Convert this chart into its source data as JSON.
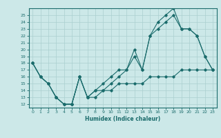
{
  "title": "",
  "xlabel": "Humidex (Indice chaleur)",
  "bg_color": "#cce8e8",
  "grid_color": "#aacfcf",
  "line_color": "#1a6b6b",
  "xticks": [
    0,
    1,
    2,
    3,
    4,
    5,
    6,
    7,
    8,
    9,
    10,
    11,
    12,
    13,
    14,
    15,
    16,
    17,
    18,
    19,
    20,
    21,
    22,
    23
  ],
  "yticks": [
    12,
    13,
    14,
    15,
    16,
    17,
    18,
    19,
    20,
    21,
    22,
    23,
    24,
    25
  ],
  "s1_x": [
    0,
    1,
    2,
    3,
    4,
    5,
    6,
    7,
    8,
    9,
    10,
    11,
    12,
    13,
    14,
    15,
    16,
    17,
    18,
    19,
    20,
    21,
    22,
    23
  ],
  "s1_y": [
    18,
    16,
    15,
    13,
    12,
    12,
    16,
    13,
    14,
    15,
    16,
    17,
    17,
    20,
    17,
    22,
    24,
    25,
    26,
    23,
    23,
    22,
    19,
    17
  ],
  "s2_x": [
    0,
    1,
    2,
    3,
    4,
    5,
    6,
    7,
    8,
    9,
    10,
    11,
    12,
    13,
    14,
    15,
    16,
    17,
    18,
    19,
    20,
    21,
    22,
    23
  ],
  "s2_y": [
    18,
    16,
    15,
    13,
    12,
    12,
    16,
    13,
    14,
    14,
    15,
    16,
    17,
    19,
    17,
    22,
    23,
    24,
    25,
    23,
    23,
    22,
    19,
    17
  ],
  "s3_x": [
    0,
    1,
    2,
    3,
    4,
    5,
    6,
    7,
    8,
    9,
    10,
    11,
    12,
    13,
    14,
    15,
    16,
    17,
    18,
    19,
    20,
    21,
    22,
    23
  ],
  "s3_y": [
    18,
    16,
    15,
    13,
    12,
    12,
    16,
    13,
    13,
    14,
    14,
    15,
    15,
    15,
    15,
    16,
    16,
    16,
    16,
    17,
    17,
    17,
    17,
    17
  ]
}
